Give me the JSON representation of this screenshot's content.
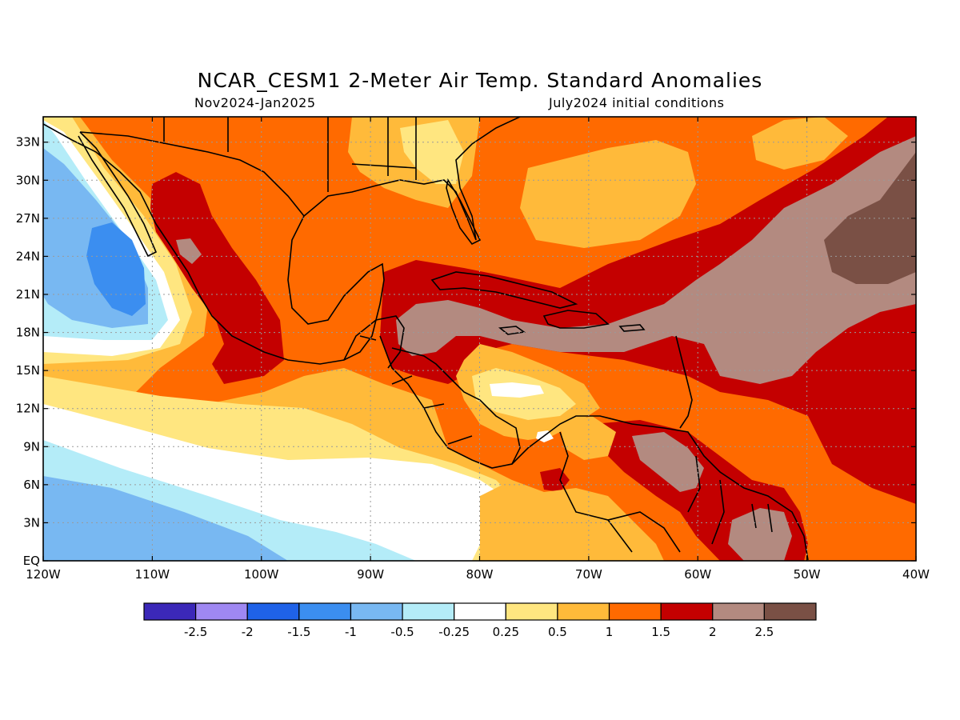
{
  "title": "NCAR_CESM1 2-Meter Air Temp. Standard Anomalies",
  "period": "Nov2024-Jan2025",
  "init": "July2024 initial conditions",
  "lat_labels": [
    "33N",
    "30N",
    "27N",
    "24N",
    "21N",
    "18N",
    "15N",
    "12N",
    "9N",
    "6N",
    "3N",
    "EQ"
  ],
  "lat_values": [
    33,
    30,
    27,
    24,
    21,
    18,
    15,
    12,
    9,
    6,
    3,
    0
  ],
  "lon_labels": [
    "120W",
    "110W",
    "100W",
    "90W",
    "80W",
    "70W",
    "60W",
    "50W",
    "40W"
  ],
  "lon_values": [
    -120,
    -110,
    -100,
    -90,
    -80,
    -70,
    -60,
    -50,
    -40
  ],
  "map_extent": {
    "lon_min": -120,
    "lon_max": -40,
    "lat_min": 0,
    "lat_max": 35
  },
  "legend": {
    "colors": [
      "#3b28b8",
      "#9f88f2",
      "#1f62e8",
      "#3b8ef0",
      "#78b8f2",
      "#b4ecf8",
      "#ffffff",
      "#ffe680",
      "#ffba3a",
      "#ff6a00",
      "#c40000",
      "#b38a80",
      "#7a5045"
    ],
    "labels": [
      "-2.5",
      "-2",
      "-1.5",
      "-1",
      "-0.5",
      "-0.25",
      "0.25",
      "0.5",
      "1",
      "1.5",
      "2",
      "2.5"
    ]
  }
}
